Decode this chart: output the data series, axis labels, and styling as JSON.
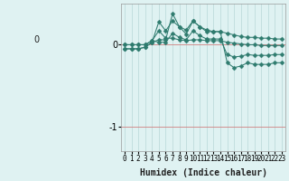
{
  "xlabel": "Humidex (Indice chaleur)",
  "x_values": [
    0,
    1,
    2,
    3,
    4,
    5,
    6,
    7,
    8,
    9,
    10,
    11,
    12,
    13,
    14,
    15,
    16,
    17,
    18,
    19,
    20,
    21,
    22,
    23
  ],
  "series": [
    [
      0.0,
      0.0,
      0.0,
      0.0,
      0.05,
      0.17,
      0.08,
      0.08,
      0.06,
      0.05,
      0.06,
      0.06,
      0.05,
      0.05,
      0.05,
      0.03,
      0.02,
      0.01,
      0.0,
      0.0,
      -0.01,
      -0.01,
      -0.01,
      -0.01
    ],
    [
      0.0,
      0.0,
      0.0,
      0.0,
      0.05,
      0.03,
      0.03,
      0.14,
      0.09,
      0.06,
      0.17,
      0.11,
      0.07,
      0.07,
      0.07,
      -0.12,
      -0.15,
      -0.14,
      -0.12,
      -0.13,
      -0.13,
      -0.13,
      -0.12,
      -0.12
    ],
    [
      -0.05,
      -0.05,
      -0.05,
      -0.03,
      0.03,
      0.28,
      0.17,
      0.29,
      0.22,
      0.18,
      0.29,
      0.22,
      0.18,
      0.16,
      0.16,
      0.14,
      0.12,
      0.1,
      0.09,
      0.09,
      0.08,
      0.08,
      0.07,
      0.07
    ],
    [
      -0.05,
      -0.05,
      -0.05,
      -0.03,
      0.03,
      0.06,
      0.06,
      0.38,
      0.22,
      0.13,
      0.29,
      0.22,
      0.16,
      0.16,
      0.16,
      -0.22,
      -0.28,
      -0.26,
      -0.22,
      -0.24,
      -0.24,
      -0.24,
      -0.22,
      -0.22
    ]
  ],
  "line_color": "#2e7b6e",
  "bg_color": "#dff2f2",
  "grid_color_v": "#b8d8d8",
  "grid_color_h": "#c8a8a8",
  "ylim": [
    -1.3,
    0.5
  ],
  "yticks": [
    0,
    -1
  ],
  "marker": "D",
  "markersize": 2.5
}
